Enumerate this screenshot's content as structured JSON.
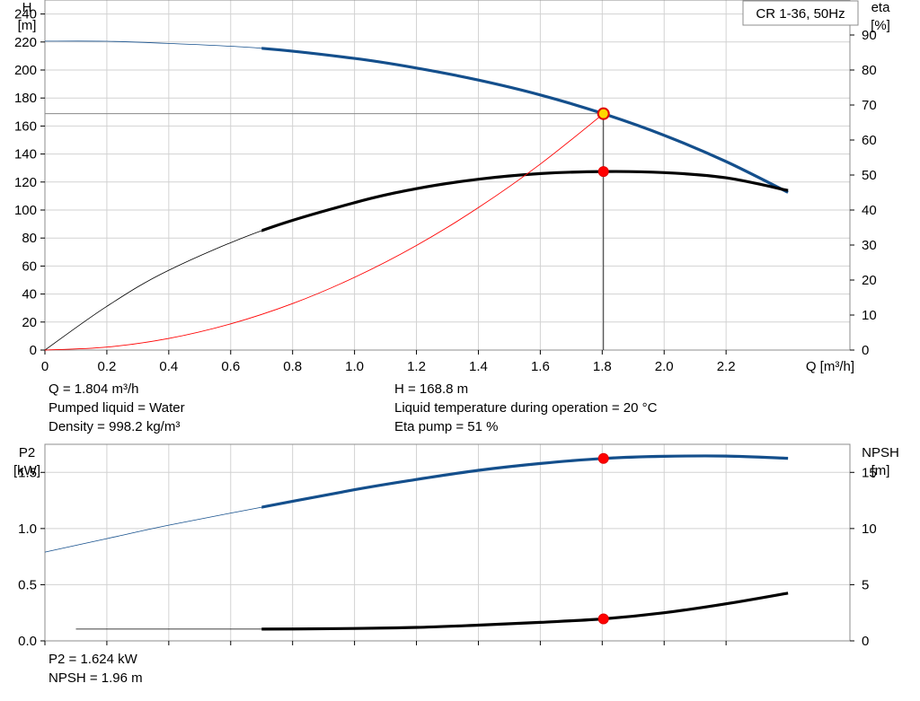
{
  "chart_data": [
    {
      "type": "line",
      "title": "CR 1-36, 50Hz",
      "x": {
        "label": "Q [m³/h]",
        "range": [
          0,
          2.6
        ],
        "ticks": [
          0,
          0.2,
          0.4,
          0.6,
          0.8,
          1.0,
          1.2,
          1.4,
          1.6,
          1.8,
          2.0,
          2.2
        ],
        "tick_labels": [
          "0",
          "0.2",
          "0.4",
          "0.6",
          "0.8",
          "1.0",
          "1.2",
          "1.4",
          "1.6",
          "1.8",
          "2.0",
          "2.2"
        ]
      },
      "y_left": {
        "label_lines": [
          "H",
          "[m]"
        ],
        "range": [
          0,
          250
        ],
        "ticks": [
          0,
          20,
          40,
          60,
          80,
          100,
          120,
          140,
          160,
          180,
          200,
          220,
          240
        ],
        "tick_labels": [
          "0",
          "20",
          "40",
          "60",
          "80",
          "100",
          "120",
          "140",
          "160",
          "180",
          "200",
          "220",
          "240"
        ]
      },
      "y_right": {
        "label_lines": [
          "eta",
          "[%]"
        ],
        "range": [
          0,
          100
        ],
        "ticks": [
          0,
          10,
          20,
          30,
          40,
          50,
          60,
          70,
          80,
          90
        ],
        "tick_labels": [
          "0",
          "10",
          "20",
          "30",
          "40",
          "50",
          "60",
          "70",
          "80",
          "90"
        ]
      },
      "grid": true,
      "series": [
        {
          "kind": "head",
          "axis": "left",
          "color": "#144f8c",
          "thin_until_x": 0.7,
          "x": [
            0,
            0.2,
            0.4,
            0.7,
            1.0,
            1.2,
            1.4,
            1.6,
            1.804,
            2.0,
            2.2,
            2.4
          ],
          "y": [
            220.6,
            220.5,
            219,
            215.5,
            208.3,
            201.4,
            192.8,
            182.2,
            168.8,
            153.4,
            134.6,
            112.6
          ]
        },
        {
          "kind": "efficiency",
          "axis": "right",
          "color": "#000000",
          "thin_until_x": 0.7,
          "x": [
            0,
            0.2,
            0.4,
            0.7,
            1.0,
            1.2,
            1.4,
            1.6,
            1.804,
            2.0,
            2.2,
            2.4
          ],
          "y": [
            0,
            12.5,
            22.8,
            34.1,
            42.1,
            46.1,
            48.8,
            50.4,
            51,
            50.7,
            49.2,
            45.6
          ]
        },
        {
          "kind": "system-curve",
          "axis": "left",
          "color": "#ff0000",
          "x": [
            0,
            0.2,
            0.4,
            0.6,
            0.8,
            1.0,
            1.2,
            1.4,
            1.6,
            1.804
          ],
          "y": [
            0,
            2.1,
            8.3,
            18.7,
            33.2,
            51.9,
            74.7,
            101.7,
            132.8,
            168.8
          ]
        }
      ],
      "operating_point": {
        "x": 1.804,
        "h": 168.8,
        "eta": 51
      }
    },
    {
      "type": "line",
      "x": {
        "range": [
          0,
          2.6
        ],
        "ticks": [
          0,
          0.2,
          0.4,
          0.6,
          0.8,
          1.0,
          1.2,
          1.4,
          1.6,
          1.8,
          2.0,
          2.2
        ]
      },
      "y_left": {
        "label_lines": [
          "P2",
          "[kW]"
        ],
        "range": [
          0,
          1.75
        ],
        "ticks": [
          0,
          0.5,
          1.0,
          1.5
        ],
        "tick_labels": [
          "0.0",
          "0.5",
          "1.0",
          "1.5"
        ]
      },
      "y_right": {
        "label_lines": [
          "NPSH",
          "[m]"
        ],
        "range": [
          0,
          17.5
        ],
        "ticks": [
          0,
          5,
          10,
          15
        ],
        "tick_labels": [
          "0",
          "5",
          "10",
          "15"
        ]
      },
      "grid": true,
      "series": [
        {
          "kind": "power",
          "axis": "left",
          "color": "#144f8c",
          "thin_until_x": 0.7,
          "x": [
            0,
            0.2,
            0.4,
            0.7,
            1.0,
            1.2,
            1.4,
            1.6,
            1.804,
            2.0,
            2.2,
            2.4
          ],
          "y": [
            0.79,
            0.91,
            1.03,
            1.19,
            1.346,
            1.437,
            1.518,
            1.579,
            1.624,
            1.643,
            1.645,
            1.625
          ]
        },
        {
          "kind": "npsh",
          "axis": "right",
          "color": "#000000",
          "thin_until_x": 0.7,
          "x": [
            0.1,
            0.4,
            0.7,
            1.0,
            1.2,
            1.4,
            1.6,
            1.804,
            2.0,
            2.2,
            2.4
          ],
          "y": [
            1.05,
            1.05,
            1.05,
            1.1,
            1.2,
            1.4,
            1.65,
            1.96,
            2.5,
            3.3,
            4.25
          ]
        }
      ],
      "operating_point": {
        "x": 1.804,
        "p2": 1.624,
        "npsh": 1.96
      }
    }
  ],
  "info_top": {
    "q": "Q = 1.804 m³/h",
    "liquid": "Pumped liquid = Water",
    "density": "Density = 998.2 kg/m³",
    "h": "H = 168.8 m",
    "temperature": "Liquid temperature during operation = 20 °C",
    "eta": "Eta pump = 51 %"
  },
  "info_bottom": {
    "p2": "P2 = 1.624 kW",
    "npsh": "NPSH = 1.96 m"
  }
}
